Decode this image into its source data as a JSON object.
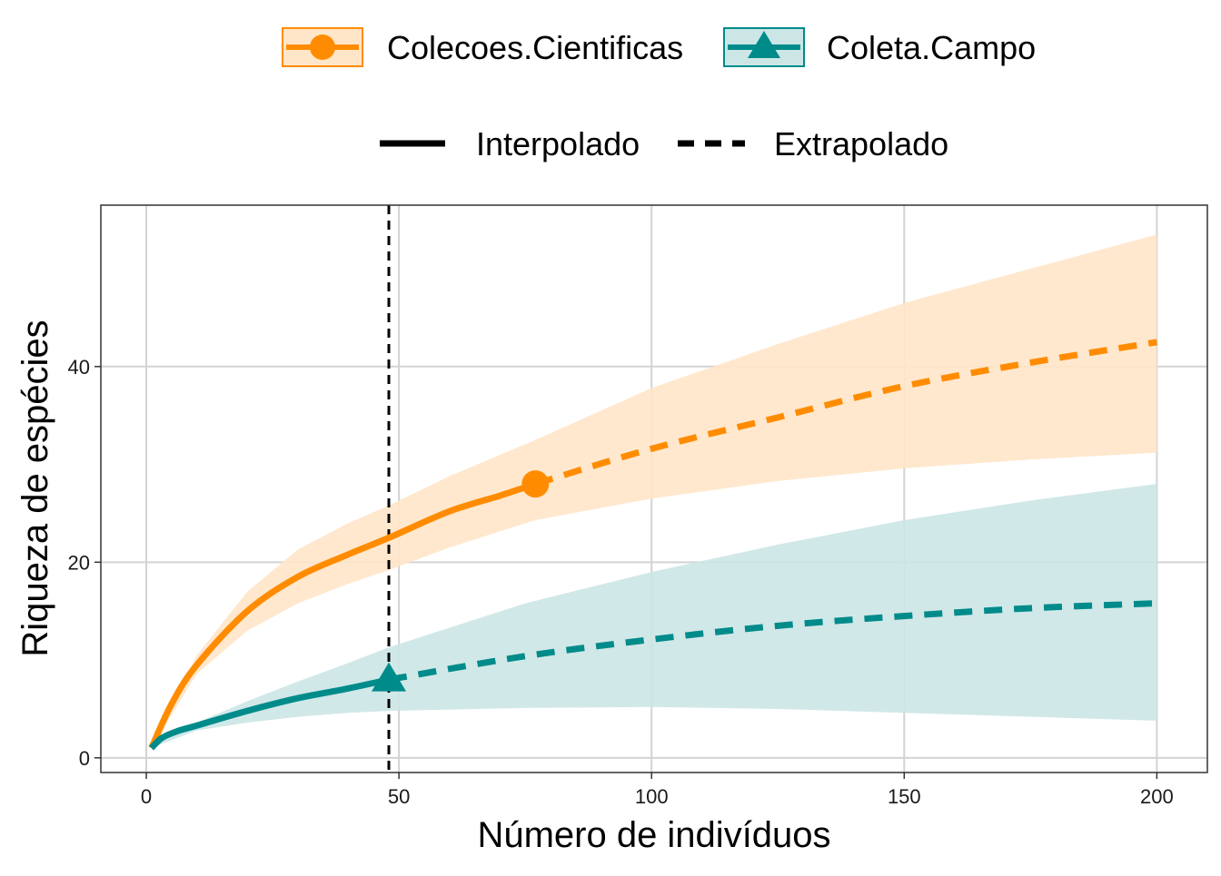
{
  "chart_data": {
    "type": "line",
    "xlabel": "Número de indivíduos",
    "ylabel": "Riqueza de espécies",
    "xlim": [
      -9,
      210
    ],
    "ylim": [
      -1.5,
      56.5
    ],
    "x_ticks": [
      0,
      50,
      100,
      150,
      200
    ],
    "y_ticks": [
      0,
      20,
      40
    ],
    "grid": true,
    "reference_line": {
      "x": 48,
      "style": "dashed",
      "color": "#000000"
    },
    "legend_placement": "top",
    "line_type_legend": [
      {
        "label": "Interpolado",
        "dash": "solid"
      },
      {
        "label": "Extrapolado",
        "dash": "dashed"
      }
    ],
    "series": [
      {
        "name": "Colecoes.Cientificas",
        "color": "#FF8C00",
        "fill": "#FFE6C9",
        "marker": "circle",
        "observed": {
          "x": 77,
          "y": 28
        },
        "interpolated": [
          [
            1,
            1
          ],
          [
            5,
            5.5
          ],
          [
            10,
            9.5
          ],
          [
            20,
            15
          ],
          [
            30,
            18.5
          ],
          [
            40,
            20.8
          ],
          [
            48,
            22.5
          ],
          [
            60,
            25.2
          ],
          [
            70,
            26.8
          ],
          [
            77,
            28
          ]
        ],
        "extrapolated": [
          [
            77,
            28
          ],
          [
            100,
            31.6
          ],
          [
            125,
            34.8
          ],
          [
            150,
            38
          ],
          [
            175,
            40.4
          ],
          [
            200,
            42.5
          ]
        ],
        "ci_upper": [
          [
            1,
            1
          ],
          [
            10,
            10.5
          ],
          [
            20,
            17
          ],
          [
            30,
            21.3
          ],
          [
            40,
            24
          ],
          [
            48,
            25.8
          ],
          [
            60,
            28.8
          ],
          [
            77,
            32.5
          ],
          [
            100,
            37.8
          ],
          [
            125,
            42.3
          ],
          [
            150,
            46.5
          ],
          [
            175,
            50
          ],
          [
            200,
            53.5
          ]
        ],
        "ci_lower": [
          [
            1,
            1
          ],
          [
            10,
            8.6
          ],
          [
            20,
            13
          ],
          [
            30,
            15.8
          ],
          [
            40,
            17.8
          ],
          [
            48,
            19.2
          ],
          [
            60,
            21.5
          ],
          [
            77,
            24.3
          ],
          [
            100,
            26.5
          ],
          [
            125,
            28.3
          ],
          [
            150,
            29.6
          ],
          [
            175,
            30.5
          ],
          [
            200,
            31.2
          ]
        ]
      },
      {
        "name": "Coleta.Campo",
        "color": "#008B8B",
        "fill": "#CCE6E6",
        "marker": "triangle",
        "observed": {
          "x": 48,
          "y": 8
        },
        "interpolated": [
          [
            1,
            1
          ],
          [
            3,
            2
          ],
          [
            6,
            2.7
          ],
          [
            10,
            3.3
          ],
          [
            20,
            4.8
          ],
          [
            30,
            6.1
          ],
          [
            40,
            7.1
          ],
          [
            48,
            8
          ]
        ],
        "extrapolated": [
          [
            48,
            8
          ],
          [
            75,
            10.4
          ],
          [
            100,
            12.1
          ],
          [
            125,
            13.5
          ],
          [
            150,
            14.5
          ],
          [
            175,
            15.3
          ],
          [
            200,
            15.8
          ]
        ],
        "ci_upper": [
          [
            1,
            1
          ],
          [
            10,
            3.6
          ],
          [
            20,
            5.8
          ],
          [
            30,
            7.8
          ],
          [
            40,
            9.7
          ],
          [
            48,
            11.3
          ],
          [
            75,
            15.8
          ],
          [
            100,
            19
          ],
          [
            125,
            21.8
          ],
          [
            150,
            24.3
          ],
          [
            175,
            26.3
          ],
          [
            200,
            28
          ]
        ],
        "ci_lower": [
          [
            1,
            1
          ],
          [
            10,
            2.8
          ],
          [
            20,
            3.6
          ],
          [
            30,
            4.2
          ],
          [
            40,
            4.6
          ],
          [
            48,
            4.8
          ],
          [
            75,
            5.1
          ],
          [
            100,
            5.2
          ],
          [
            125,
            5
          ],
          [
            150,
            4.6
          ],
          [
            175,
            4.2
          ],
          [
            200,
            3.8
          ]
        ]
      }
    ]
  }
}
